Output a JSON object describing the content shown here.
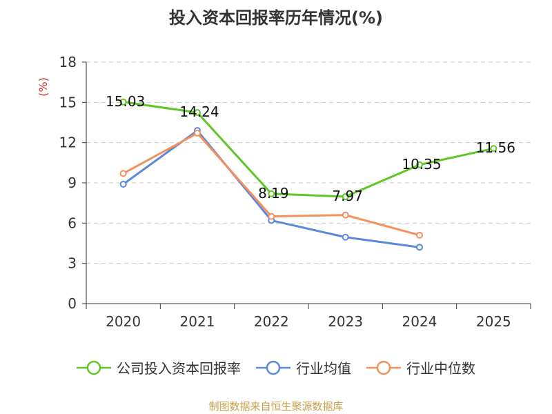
{
  "chart_data": {
    "type": "line",
    "title": "投入资本回报率历年情况(%)",
    "ylabel": "(%)",
    "xlabel": "",
    "categories": [
      "2020",
      "2021",
      "2022",
      "2023",
      "2024",
      "2025"
    ],
    "ylim": [
      0,
      18
    ],
    "yticks": [
      0,
      3,
      6,
      9,
      12,
      15,
      18
    ],
    "grid": true,
    "legend_position": "bottom",
    "series": [
      {
        "name": "公司投入资本回报率",
        "color": "#5ec625",
        "values": [
          15.03,
          14.24,
          8.19,
          7.97,
          10.35,
          11.56
        ],
        "labels": [
          "15.03",
          "14.24",
          "8.19",
          "7.97",
          "10.35",
          "11.56"
        ]
      },
      {
        "name": "行业均值",
        "color": "#5b87dc",
        "values": [
          8.9,
          12.9,
          6.2,
          4.95,
          4.2,
          null
        ]
      },
      {
        "name": "行业中位数",
        "color": "#f4905a",
        "values": [
          9.7,
          12.7,
          6.5,
          6.6,
          5.1,
          null
        ]
      }
    ]
  },
  "footer": {
    "source": "制图数据来自恒生聚源数据库"
  }
}
